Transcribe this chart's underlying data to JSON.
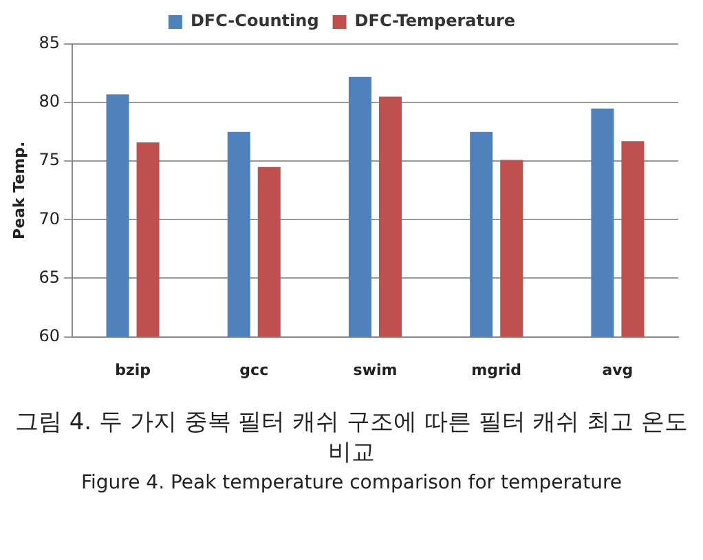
{
  "chart_data": {
    "type": "bar",
    "ylabel": "Peak Temp.",
    "categories": [
      "bzip",
      "gcc",
      "swim",
      "mgrid",
      "avg"
    ],
    "series": [
      {
        "name": "DFC-Counting",
        "color": "#4f81bd",
        "values": [
          80.7,
          77.5,
          82.2,
          77.5,
          79.5
        ]
      },
      {
        "name": "DFC-Temperature",
        "color": "#c0504d",
        "values": [
          76.6,
          74.5,
          80.5,
          75.1,
          76.7
        ]
      }
    ],
    "ylim": [
      60,
      85
    ],
    "yticks": [
      60,
      65,
      70,
      75,
      80,
      85
    ],
    "grid": "y",
    "legend": "top",
    "annotations": [
      "그림 4. 두 가지 중복 필터 캐쉬 구조에 따른 필터 캐쉬 최고 온도 비교",
      "Figure 4. Peak temperature comparison for temperature"
    ]
  }
}
